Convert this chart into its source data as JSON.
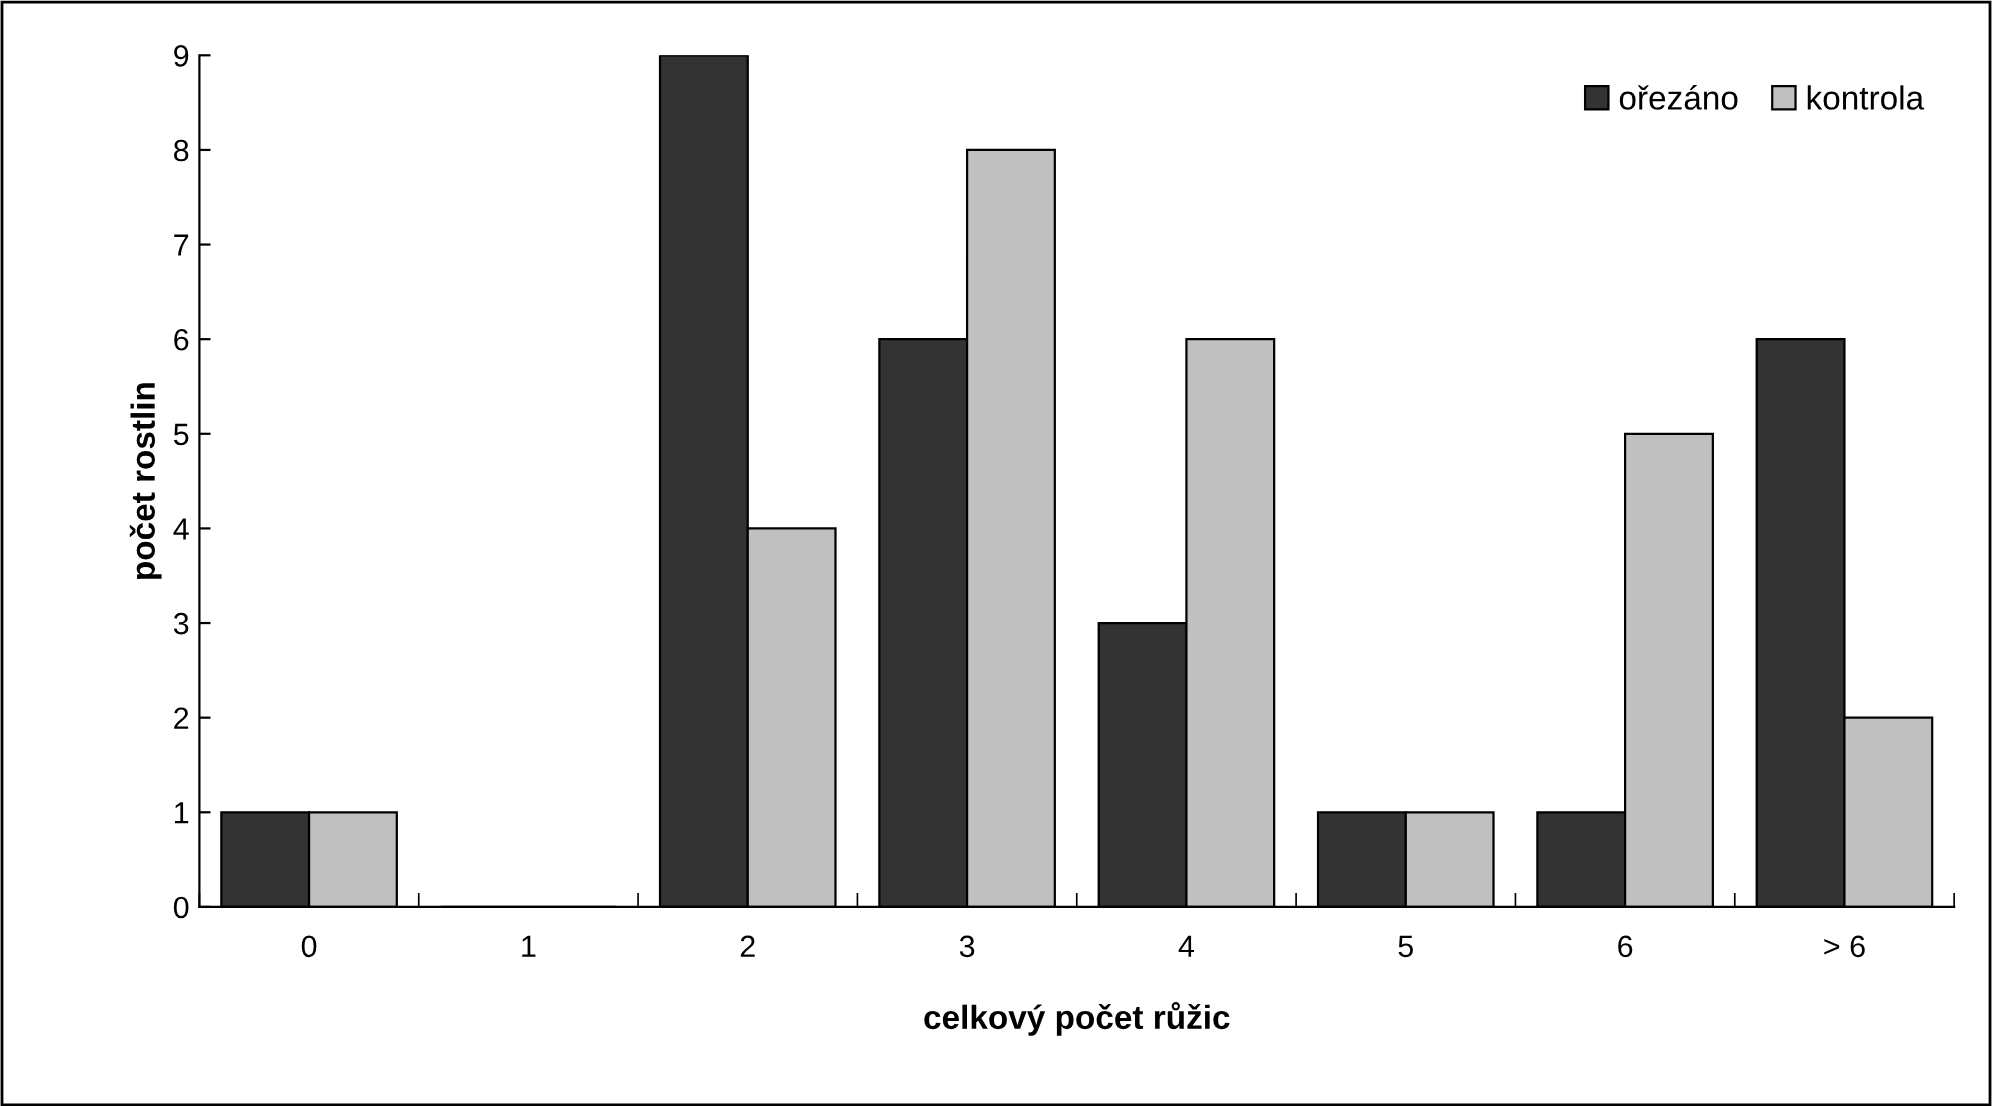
{
  "chart_data": {
    "type": "bar",
    "xlabel": "celkový počet růžic",
    "ylabel": "počet rostlin",
    "categories": [
      "0",
      "1",
      "2",
      "3",
      "4",
      "5",
      "6",
      "> 6"
    ],
    "series": [
      {
        "name": "ořezáno",
        "color": "#333333",
        "values": [
          1,
          0,
          9,
          6,
          3,
          1,
          1,
          6
        ]
      },
      {
        "name": "kontrola",
        "color": "#c0c0c0",
        "values": [
          1,
          0,
          4,
          8,
          6,
          1,
          5,
          2
        ]
      }
    ],
    "ylim": [
      0,
      9
    ],
    "yticks": [
      0,
      1,
      2,
      3,
      4,
      5,
      6,
      7,
      8,
      9
    ],
    "grid": false,
    "legend": "top right"
  }
}
